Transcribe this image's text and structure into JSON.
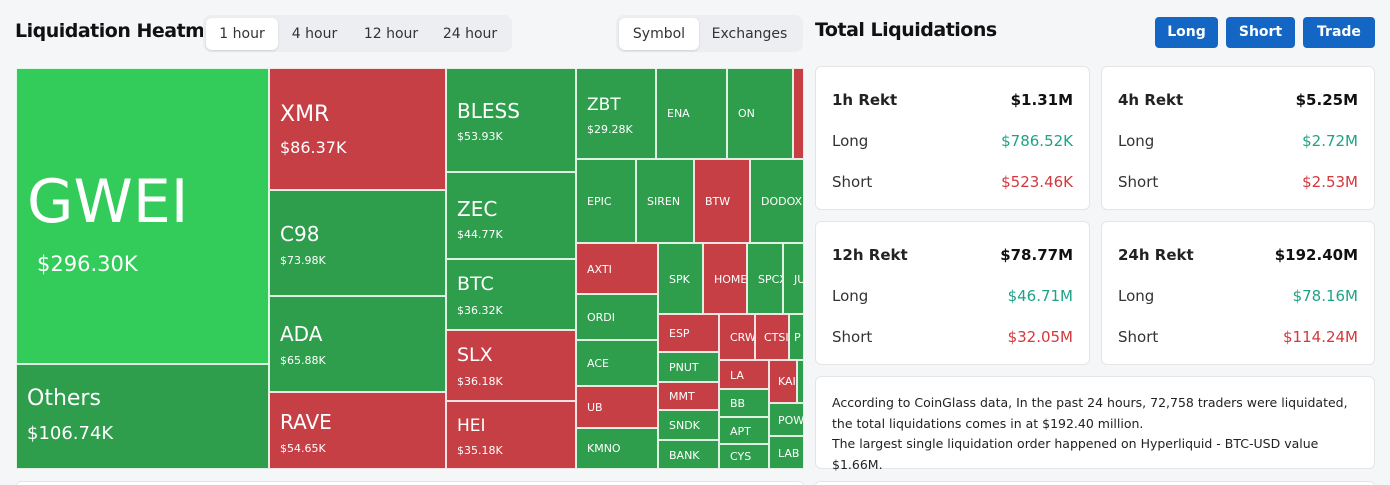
{
  "heatmap": {
    "title": "Liquidation Heatmap",
    "timeframes": [
      "1 hour",
      "4 hour",
      "12 hour",
      "24 hour"
    ],
    "active_timeframe": "1 hour",
    "view_toggle": [
      "Symbol",
      "Exchanges"
    ],
    "active_view": "Symbol"
  },
  "tiles": [
    {
      "symbol": "GWEI",
      "value": "$296.30K",
      "color": "g1"
    },
    {
      "symbol": "Others",
      "value": "$106.74K",
      "color": "g2"
    },
    {
      "symbol": "XMR",
      "value": "$86.37K",
      "color": "r1"
    },
    {
      "symbol": "C98",
      "value": "$73.98K",
      "color": "g2"
    },
    {
      "symbol": "ADA",
      "value": "$65.88K",
      "color": "g2"
    },
    {
      "symbol": "RAVE",
      "value": "$54.65K",
      "color": "r1"
    },
    {
      "symbol": "BLESS",
      "value": "$53.93K",
      "color": "g2"
    },
    {
      "symbol": "ZEC",
      "value": "$44.77K",
      "color": "g2"
    },
    {
      "symbol": "BTC",
      "value": "$36.32K",
      "color": "g2"
    },
    {
      "symbol": "SLX",
      "value": "$36.18K",
      "color": "r1"
    },
    {
      "symbol": "HEI",
      "value": "$35.18K",
      "color": "r1"
    },
    {
      "symbol": "ZBT",
      "value": "$29.28K",
      "color": "g2"
    },
    {
      "symbol": "ENA",
      "value": "",
      "color": "g2"
    },
    {
      "symbol": "ON",
      "value": "",
      "color": "g2"
    },
    {
      "symbol": "",
      "value": "",
      "color": "r1"
    },
    {
      "symbol": "EPIC",
      "value": "",
      "color": "g2"
    },
    {
      "symbol": "SIREN",
      "value": "",
      "color": "g2"
    },
    {
      "symbol": "BTW",
      "value": "",
      "color": "r1"
    },
    {
      "symbol": "DODOX",
      "value": "",
      "color": "g2"
    },
    {
      "symbol": "AXTI",
      "value": "",
      "color": "r1"
    },
    {
      "symbol": "SPK",
      "value": "",
      "color": "g2"
    },
    {
      "symbol": "HOME",
      "value": "",
      "color": "r1"
    },
    {
      "symbol": "SPCX",
      "value": "",
      "color": "g2"
    },
    {
      "symbol": "JU",
      "value": "",
      "color": "g2"
    },
    {
      "symbol": "ORDI",
      "value": "",
      "color": "g2"
    },
    {
      "symbol": "ESP",
      "value": "",
      "color": "r1"
    },
    {
      "symbol": "CRWV",
      "value": "",
      "color": "r1"
    },
    {
      "symbol": "CTSI",
      "value": "",
      "color": "r1"
    },
    {
      "symbol": "P",
      "value": "",
      "color": "g2"
    },
    {
      "symbol": "ACE",
      "value": "",
      "color": "g2"
    },
    {
      "symbol": "PNUT",
      "value": "",
      "color": "g2"
    },
    {
      "symbol": "LA",
      "value": "",
      "color": "r1"
    },
    {
      "symbol": "KAI",
      "value": "",
      "color": "r1"
    },
    {
      "symbol": "",
      "value": "",
      "color": "g2"
    },
    {
      "symbol": "UB",
      "value": "",
      "color": "r1"
    },
    {
      "symbol": "MMT",
      "value": "",
      "color": "r1"
    },
    {
      "symbol": "BB",
      "value": "",
      "color": "g2"
    },
    {
      "symbol": "POWR",
      "value": "",
      "color": "g2"
    },
    {
      "symbol": "SNDK",
      "value": "",
      "color": "g2"
    },
    {
      "symbol": "APT",
      "value": "",
      "color": "g2"
    },
    {
      "symbol": "KMNO",
      "value": "",
      "color": "g2"
    },
    {
      "symbol": "BANK",
      "value": "",
      "color": "g2"
    },
    {
      "symbol": "CYS",
      "value": "",
      "color": "g2"
    },
    {
      "symbol": "LAB",
      "value": "",
      "color": "g2"
    },
    {
      "symbol": "",
      "value": "",
      "color": "g2"
    }
  ],
  "totals": {
    "title": "Total Liquidations",
    "buttons": {
      "long": "Long",
      "short": "Short",
      "trade": "Trade"
    },
    "labels": {
      "long": "Long",
      "short": "Short"
    },
    "cards": [
      {
        "period": "1h Rekt",
        "total": "$1.31M",
        "long": "$786.52K",
        "short": "$523.46K"
      },
      {
        "period": "4h Rekt",
        "total": "$5.25M",
        "long": "$2.72M",
        "short": "$2.53M"
      },
      {
        "period": "12h Rekt",
        "total": "$78.77M",
        "long": "$46.71M",
        "short": "$32.05M"
      },
      {
        "period": "24h Rekt",
        "total": "$192.40M",
        "long": "$78.16M",
        "short": "$114.24M"
      }
    ],
    "summary_line1": "According to CoinGlass data, In the past 24 hours, 72,758 traders were liquidated, the total liquidations comes in at $192.40 million.",
    "summary_line2": "The largest single liquidation order happened on Hyperliquid - BTC-USD value $1.66M."
  },
  "colors": {
    "green_bright": "#33cc5a",
    "green": "#2e9e4d",
    "red": "#c63f45",
    "brand_blue": "#1366c4",
    "positive": "#1fa388",
    "negative": "#d4383c"
  }
}
